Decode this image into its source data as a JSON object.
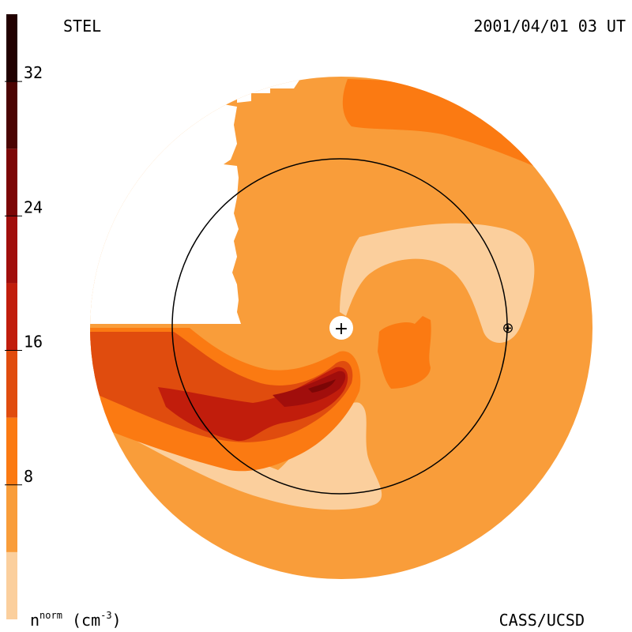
{
  "chart_data": {
    "type": "heatmap",
    "title_left": "STEL",
    "title_right": "2001/04/01 03 UT",
    "credit": "CASS/UCSD",
    "colorbar": {
      "label_base": "n",
      "label_sup": "norm",
      "label_unit_open": " (cm",
      "label_unit_sup": "-3",
      "label_unit_close": ")",
      "range": [
        0,
        36
      ],
      "levels": [
        0,
        4,
        8,
        12,
        16,
        20,
        24,
        28,
        32,
        36
      ],
      "colors": [
        "#fbcf9d",
        "#f99d3a",
        "#fb7a12",
        "#e04c0e",
        "#c11d0c",
        "#a10e0c",
        "#7c0606",
        "#4b0403",
        "#210000"
      ],
      "ticks": [
        {
          "value": 8,
          "label": "8"
        },
        {
          "value": 16,
          "label": "16"
        },
        {
          "value": 24,
          "label": "24"
        },
        {
          "value": 32,
          "label": "32"
        }
      ]
    },
    "markers": {
      "sun": "+",
      "earth": "⊕"
    },
    "earth_orbit_radius_au": 1
  }
}
